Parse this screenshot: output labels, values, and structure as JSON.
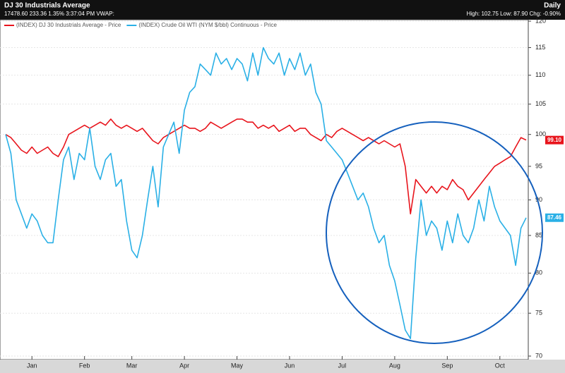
{
  "chart_data": {
    "type": "line",
    "title": "DJ 30 Industrials Average",
    "subtitle": "17478.60 233.36 1.35% 3:37:04 PM VWAP:",
    "period": "Daily",
    "stats": "High: 102.75 Low: 87.90 Chg: -0.90%",
    "x": [
      null,
      null,
      null,
      null,
      null,
      "Jan",
      null,
      null,
      null,
      null,
      null,
      null,
      null,
      null,
      null,
      "Feb",
      null,
      null,
      null,
      null,
      null,
      null,
      null,
      null,
      "Mar",
      null,
      null,
      null,
      null,
      null,
      null,
      null,
      null,
      null,
      "Apr",
      null,
      null,
      null,
      null,
      null,
      null,
      null,
      null,
      null,
      "May",
      null,
      null,
      null,
      null,
      null,
      null,
      null,
      null,
      null,
      "Jun",
      null,
      null,
      null,
      null,
      null,
      null,
      null,
      null,
      null,
      "Jul",
      null,
      null,
      null,
      null,
      null,
      null,
      null,
      null,
      null,
      "Aug",
      null,
      null,
      null,
      null,
      null,
      null,
      null,
      null,
      null,
      "Sep",
      null,
      null,
      null,
      null,
      null,
      null,
      null,
      null,
      null,
      "Oct",
      null,
      null,
      null,
      null,
      null
    ],
    "series": [
      {
        "name": "(INDEX) DJ 30 Industrials Average - Price",
        "color": "#e8141c",
        "last_label": "99.10",
        "values": [
          100,
          99.5,
          98.5,
          97.5,
          97,
          98,
          97,
          97.5,
          98,
          97,
          96.5,
          98,
          100,
          100.5,
          101,
          101.5,
          101,
          101.5,
          102,
          101.5,
          102.5,
          101.5,
          101,
          101.5,
          101,
          100.5,
          101,
          100,
          99,
          98.5,
          99.5,
          100,
          100.5,
          101,
          101.5,
          101,
          101,
          100.5,
          101,
          102,
          101.5,
          101,
          101.5,
          102,
          102.5,
          102.5,
          102,
          102,
          101,
          101.5,
          101,
          101.5,
          100.5,
          101,
          101.5,
          100.5,
          101,
          101,
          100,
          99.5,
          99,
          100,
          99.5,
          100.5,
          101,
          100.5,
          100,
          99.5,
          99,
          99.5,
          99,
          98.5,
          99,
          98.5,
          98,
          98.5,
          95,
          88,
          93,
          92,
          91,
          92,
          91,
          92,
          91.5,
          93,
          92,
          91.5,
          90,
          91,
          92,
          93,
          94,
          95,
          95.5,
          96,
          96.5,
          98,
          99.5,
          99.1
        ]
      },
      {
        "name": "(INDEX) Crude Oil WTI (NYM $/bbl) Continuous - Price",
        "color": "#2ab0e6",
        "last_label": "87.46",
        "values": [
          100,
          97,
          90,
          88,
          86,
          88,
          87,
          85,
          84,
          84,
          90,
          96,
          98,
          93,
          97,
          96,
          101,
          95,
          93,
          96,
          97,
          92,
          93,
          87,
          83,
          82,
          85,
          90,
          95,
          89,
          98,
          100,
          102,
          97,
          104,
          107,
          108,
          112,
          111,
          110,
          114,
          112,
          113,
          111,
          113,
          112,
          109,
          114,
          110,
          115,
          113,
          112,
          114,
          110,
          113,
          111,
          114,
          110,
          112,
          107,
          105,
          99,
          98,
          97,
          96,
          94,
          92,
          90,
          91,
          89,
          86,
          84,
          85,
          81,
          79,
          76,
          73,
          72,
          82,
          90,
          85,
          87,
          86,
          83,
          87,
          84,
          88,
          85,
          84,
          86,
          90,
          87,
          92,
          89,
          87,
          86,
          85,
          81,
          86,
          87.46
        ]
      }
    ],
    "ylim": [
      70,
      120
    ],
    "yticks": [
      70,
      75,
      80,
      85,
      90,
      95,
      100,
      105,
      110,
      115,
      120
    ],
    "log_scale": true,
    "grid": true
  }
}
